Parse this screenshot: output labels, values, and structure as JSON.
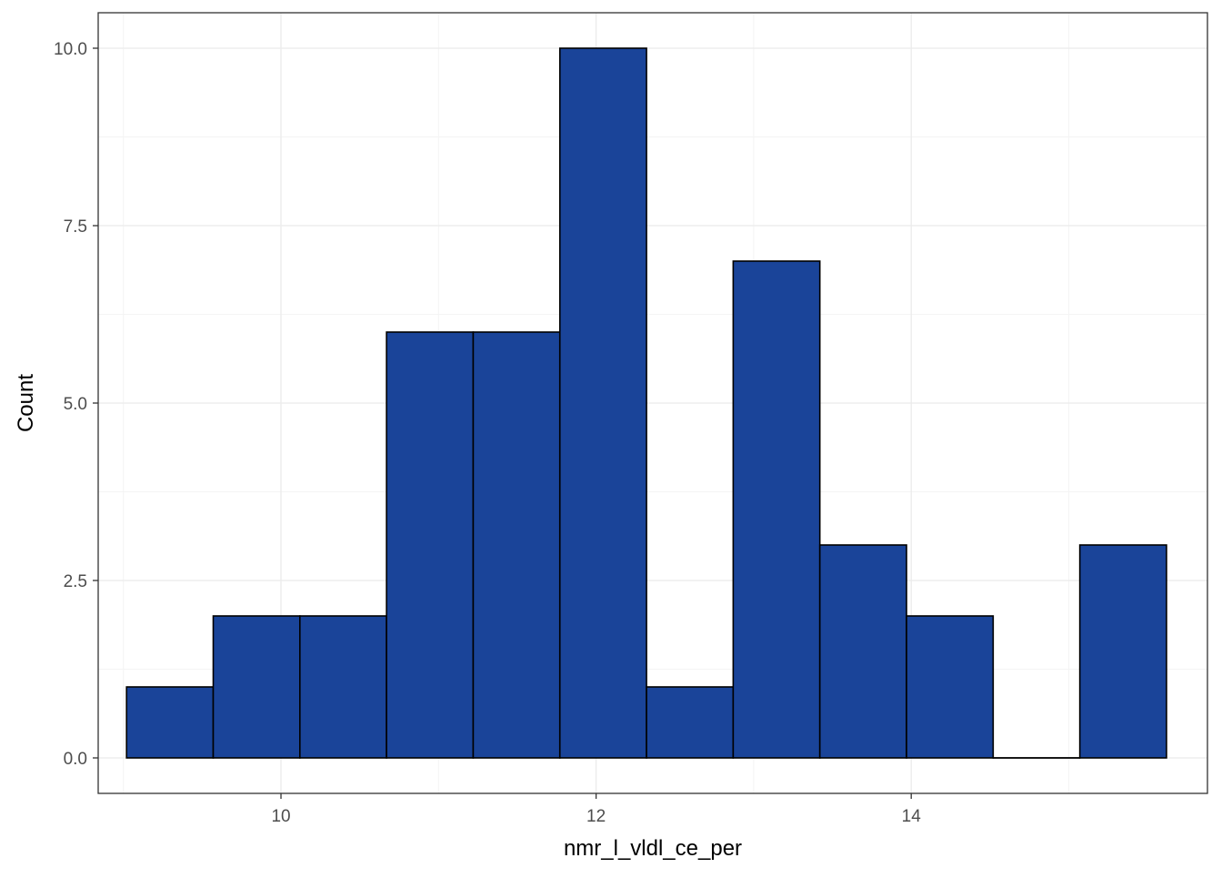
{
  "chart_data": {
    "type": "bar",
    "subtype": "histogram",
    "title": "",
    "xlabel": "nmr_l_vldl_ce_per",
    "ylabel": "Count",
    "xlim": [
      8.84,
      15.88
    ],
    "ylim": [
      -0.5,
      10.5
    ],
    "x_ticks": [
      10,
      12,
      14
    ],
    "x_tick_labels": [
      "10",
      "12",
      "14"
    ],
    "y_ticks": [
      0,
      2.5,
      5,
      7.5,
      10
    ],
    "y_tick_labels": [
      "0.0",
      "2.5",
      "5.0",
      "7.5",
      "10.0"
    ],
    "grid": true,
    "legend": "none",
    "bins": [
      {
        "x0": 9.02,
        "x1": 9.57,
        "count": 1
      },
      {
        "x0": 9.57,
        "x1": 10.12,
        "count": 2
      },
      {
        "x0": 10.12,
        "x1": 10.67,
        "count": 2
      },
      {
        "x0": 10.67,
        "x1": 11.22,
        "count": 6
      },
      {
        "x0": 11.22,
        "x1": 11.77,
        "count": 6
      },
      {
        "x0": 11.77,
        "x1": 12.32,
        "count": 10
      },
      {
        "x0": 12.32,
        "x1": 12.87,
        "count": 1
      },
      {
        "x0": 12.87,
        "x1": 13.42,
        "count": 7
      },
      {
        "x0": 13.42,
        "x1": 13.97,
        "count": 3
      },
      {
        "x0": 13.97,
        "x1": 14.52,
        "count": 2
      },
      {
        "x0": 14.52,
        "x1": 15.07,
        "count": 0
      },
      {
        "x0": 15.07,
        "x1": 15.62,
        "count": 3
      }
    ],
    "colors": {
      "bar_fill": "#1a4499",
      "bar_stroke": "#000000",
      "grid_major": "#ebebeb",
      "grid_minor": "#f4f4f4",
      "panel_border": "#333333"
    }
  }
}
